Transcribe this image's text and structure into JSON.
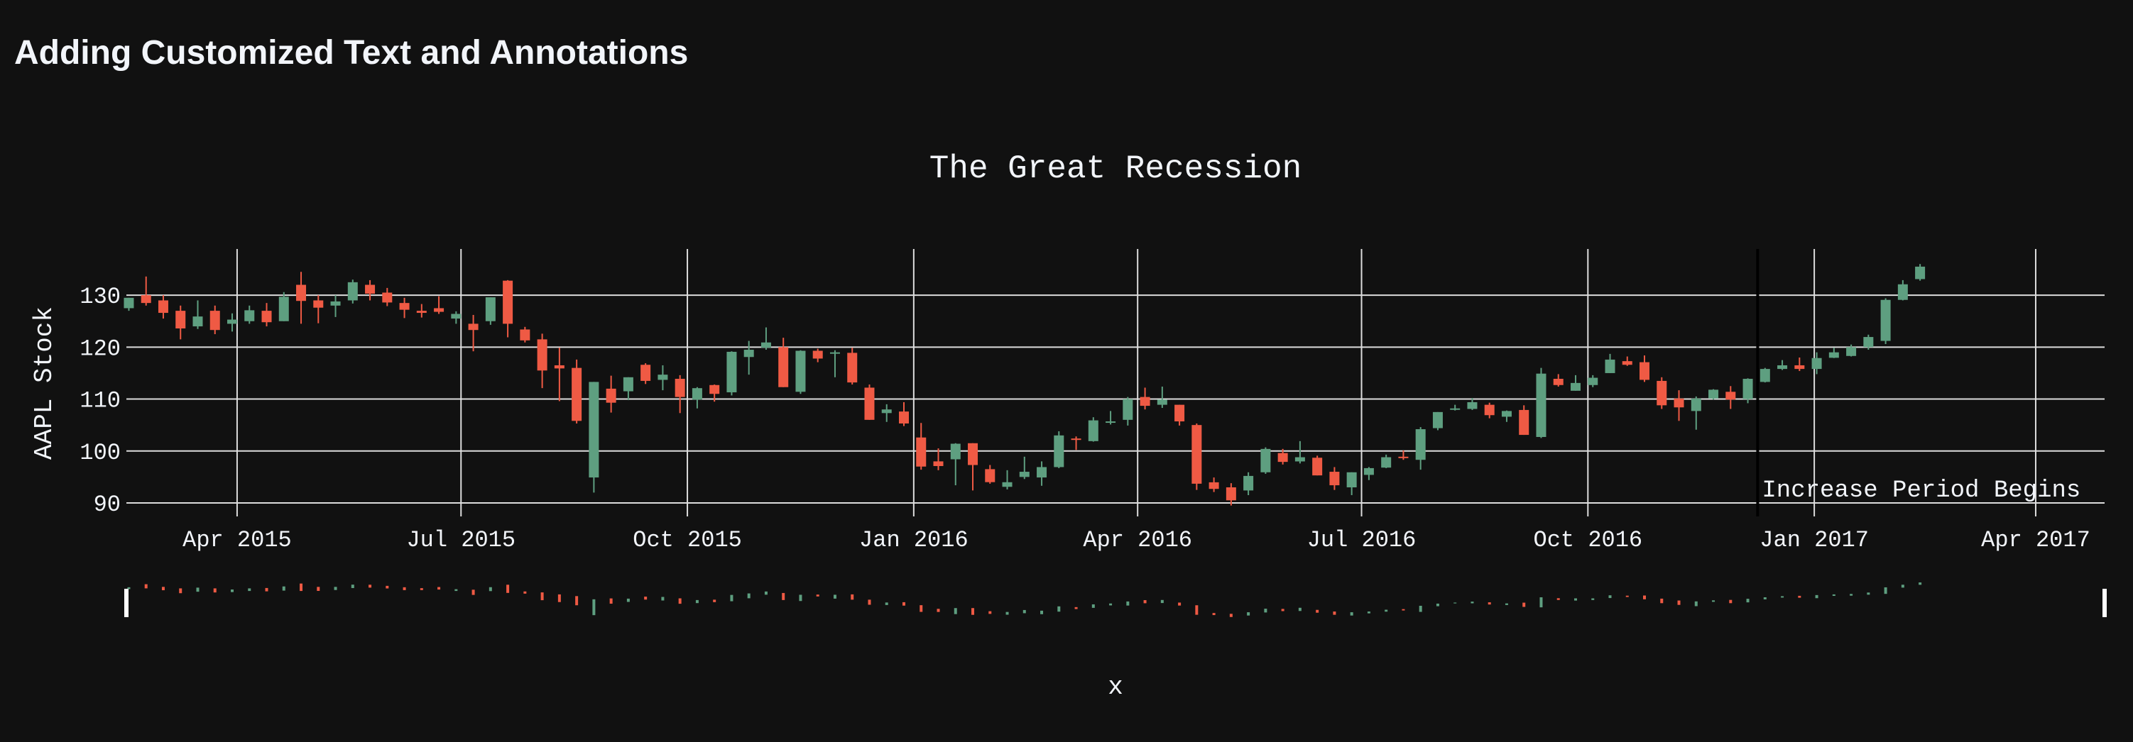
{
  "page_title": "Adding Customized Text and Annotations",
  "chart_data": {
    "type": "candlestick",
    "title": "The Great Recession",
    "xlabel": "x",
    "ylabel": "AAPL Stock",
    "increasing_color": "#5e9f80",
    "decreasing_color": "#ef5a44",
    "grid": true,
    "rangeslider": true,
    "xlim": [
      "2015-02-15",
      "2017-04-29"
    ],
    "ylim": [
      87.4,
      138.9
    ],
    "yticks": [
      90,
      100,
      110,
      120,
      130
    ],
    "xticks": [
      {
        "value": "2015-04-01",
        "label": "Apr 2015"
      },
      {
        "value": "2015-07-01",
        "label": "Jul 2015"
      },
      {
        "value": "2015-10-01",
        "label": "Oct 2015"
      },
      {
        "value": "2016-01-01",
        "label": "Jan 2016"
      },
      {
        "value": "2016-04-01",
        "label": "Apr 2016"
      },
      {
        "value": "2016-07-01",
        "label": "Jul 2016"
      },
      {
        "value": "2016-10-01",
        "label": "Oct 2016"
      },
      {
        "value": "2017-01-01",
        "label": "Jan 2017"
      },
      {
        "value": "2017-04-01",
        "label": "Apr 2017"
      }
    ],
    "annotations": [
      {
        "x": "2016-12-09",
        "text": "Increase Period Begins"
      }
    ],
    "x": [
      "2015-02-16",
      "2015-02-23",
      "2015-03-02",
      "2015-03-09",
      "2015-03-16",
      "2015-03-23",
      "2015-03-30",
      "2015-04-06",
      "2015-04-13",
      "2015-04-20",
      "2015-04-27",
      "2015-05-04",
      "2015-05-11",
      "2015-05-18",
      "2015-05-25",
      "2015-06-01",
      "2015-06-08",
      "2015-06-15",
      "2015-06-22",
      "2015-06-29",
      "2015-07-06",
      "2015-07-13",
      "2015-07-20",
      "2015-07-27",
      "2015-08-03",
      "2015-08-10",
      "2015-08-17",
      "2015-08-24",
      "2015-08-31",
      "2015-09-07",
      "2015-09-14",
      "2015-09-21",
      "2015-09-28",
      "2015-10-05",
      "2015-10-12",
      "2015-10-19",
      "2015-10-26",
      "2015-11-02",
      "2015-11-09",
      "2015-11-16",
      "2015-11-23",
      "2015-11-30",
      "2015-12-07",
      "2015-12-14",
      "2015-12-21",
      "2015-12-28",
      "2016-01-04",
      "2016-01-11",
      "2016-01-18",
      "2016-01-25",
      "2016-02-01",
      "2016-02-08",
      "2016-02-15",
      "2016-02-22",
      "2016-02-29",
      "2016-03-07",
      "2016-03-14",
      "2016-03-21",
      "2016-03-28",
      "2016-04-04",
      "2016-04-11",
      "2016-04-18",
      "2016-04-25",
      "2016-05-02",
      "2016-05-09",
      "2016-05-16",
      "2016-05-23",
      "2016-05-30",
      "2016-06-06",
      "2016-06-13",
      "2016-06-20",
      "2016-06-27",
      "2016-07-04",
      "2016-07-11",
      "2016-07-18",
      "2016-07-25",
      "2016-08-01",
      "2016-08-08",
      "2016-08-15",
      "2016-08-22",
      "2016-08-29",
      "2016-09-05",
      "2016-09-12",
      "2016-09-19",
      "2016-09-26",
      "2016-10-03",
      "2016-10-10",
      "2016-10-17",
      "2016-10-24",
      "2016-10-31",
      "2016-11-07",
      "2016-11-14",
      "2016-11-21",
      "2016-11-28",
      "2016-12-05",
      "2016-12-12",
      "2016-12-19",
      "2016-12-26",
      "2017-01-02",
      "2017-01-09",
      "2017-01-16",
      "2017-01-23",
      "2017-01-30",
      "2017-02-06",
      "2017-02-13"
    ],
    "open": [
      127.5,
      130,
      129,
      127,
      124,
      127,
      124.5,
      125,
      127,
      125,
      132,
      129,
      128,
      129,
      132,
      130.5,
      128.5,
      127,
      127.5,
      125.5,
      124.5,
      125,
      132.8,
      123.4,
      121.5,
      116.5,
      116,
      94.9,
      112,
      111.5,
      116.6,
      113.7,
      113.9,
      109.9,
      112.7,
      111.3,
      118.1,
      119.9,
      120,
      111.4,
      119.3,
      118.8,
      118.9,
      112.2,
      107.3,
      107.6,
      102.6,
      98,
      98.4,
      101.5,
      96.5,
      93.1,
      95,
      94.9,
      96.9,
      102.4,
      101.9,
      105.5,
      106,
      110.4,
      108.9,
      108.9,
      105,
      93.97,
      93,
      92.4,
      95.9,
      99.6,
      97.99,
      98.7,
      96,
      93,
      95.4,
      96.8,
      98.9,
      98.3,
      104.4,
      108.2,
      108.1,
      108.9,
      106.6,
      107.9,
      102.7,
      113.9,
      111.6,
      112.7,
      115,
      117.3,
      117.1,
      113.5,
      110.1,
      107.7,
      110.1,
      111.4,
      110,
      113.3,
      115.8,
      116.5,
      115.8,
      117.95,
      118.3,
      120,
      121.2,
      129.1,
      133.1
    ],
    "high": [
      129.5,
      133.6,
      130,
      128,
      129,
      128,
      126.5,
      128,
      128.5,
      130.6,
      134.5,
      130,
      130,
      133,
      132.9,
      131.4,
      129.5,
      128.3,
      129.8,
      126.9,
      126.2,
      129.6,
      132.9,
      123.9,
      122.6,
      119.9,
      117.6,
      113.3,
      114.5,
      114.2,
      116.9,
      116.5,
      114.6,
      112.3,
      112.8,
      119.2,
      121.2,
      123.8,
      121.8,
      119.4,
      119.7,
      119.4,
      119.9,
      112.8,
      109,
      109.4,
      105.4,
      100.5,
      101.5,
      101.5,
      97.3,
      96.3,
      98.9,
      98,
      103.8,
      102.8,
      106.5,
      107.7,
      110.4,
      112.2,
      112.4,
      108.9,
      105.3,
      94.9,
      93.8,
      95.9,
      100.7,
      100.4,
      101.9,
      99.1,
      96.9,
      95.9,
      96.9,
      99.3,
      100.1,
      104.6,
      107.5,
      108.9,
      110.2,
      109.3,
      107.8,
      108.8,
      116,
      114.8,
      114.6,
      114.6,
      118.7,
      118.2,
      118.4,
      114.2,
      111.7,
      110.5,
      111.9,
      112.5,
      114,
      116,
      117.5,
      118,
      119,
      119.9,
      120.5,
      122.4,
      129.4,
      132.9,
      136
    ],
    "low": [
      127,
      128,
      125.5,
      121.5,
      123.5,
      122.5,
      123,
      124.5,
      124,
      125,
      124.5,
      124.6,
      125.8,
      128.4,
      129,
      127.9,
      125.6,
      125.7,
      126.4,
      124.5,
      119.2,
      124.3,
      121.9,
      120.9,
      112.1,
      109.6,
      105.3,
      92,
      107.4,
      109.8,
      112.9,
      111.7,
      107.3,
      108.2,
      109.5,
      110.7,
      114.7,
      119.5,
      112.3,
      111,
      117.1,
      114.2,
      112.8,
      106,
      105.6,
      104.8,
      96.4,
      96.3,
      93.4,
      92.4,
      93.7,
      92.6,
      94.6,
      93.3,
      96.7,
      100.2,
      101.8,
      105.1,
      104.9,
      108,
      108.3,
      104.9,
      92.5,
      92.1,
      89.5,
      91.5,
      95.6,
      97.4,
      97.6,
      95.3,
      92.5,
      91.5,
      94.4,
      96.7,
      98.3,
      96.4,
      104,
      107.8,
      107.9,
      106.3,
      105.6,
      103.1,
      102.5,
      112.4,
      111.6,
      112.3,
      115,
      116.4,
      113.3,
      108.1,
      105.8,
      104.1,
      109.9,
      108.1,
      109.2,
      113.2,
      115.6,
      115.4,
      114.8,
      117.9,
      118.2,
      119.5,
      120.6,
      129,
      132.8
    ],
    "close": [
      129.5,
      128.5,
      126.6,
      123.6,
      125.9,
      123.3,
      125.3,
      127.1,
      124.8,
      129.7,
      128.9,
      127.6,
      128.8,
      132.5,
      130.3,
      128.6,
      127.2,
      126.6,
      126.8,
      126.4,
      123.3,
      129.6,
      124.5,
      121.3,
      115.5,
      115.9,
      105.8,
      113.3,
      109.3,
      114.2,
      113.5,
      114.7,
      110.4,
      112.1,
      111,
      119.1,
      119.5,
      120.9,
      112.3,
      119.3,
      117.8,
      119,
      113.2,
      106,
      108,
      105.3,
      97,
      97.1,
      101.4,
      97.3,
      94,
      93.99,
      96,
      96.9,
      103,
      102.3,
      105.9,
      105.7,
      109.99,
      108.7,
      109.9,
      105.7,
      93.7,
      92.7,
      90.5,
      95.2,
      100.4,
      97.9,
      98.8,
      95.3,
      93.4,
      95.9,
      96.7,
      98.8,
      98.7,
      104.2,
      107.5,
      108.2,
      109.4,
      106.9,
      107.7,
      103.1,
      114.9,
      112.7,
      113.1,
      114.1,
      117.6,
      116.6,
      113.7,
      108.8,
      108.4,
      110.1,
      111.8,
      109.9,
      113.9,
      115.8,
      116.5,
      115.8,
      117.9,
      119,
      120,
      121.95,
      129.1,
      132.1,
      135.5
    ]
  }
}
